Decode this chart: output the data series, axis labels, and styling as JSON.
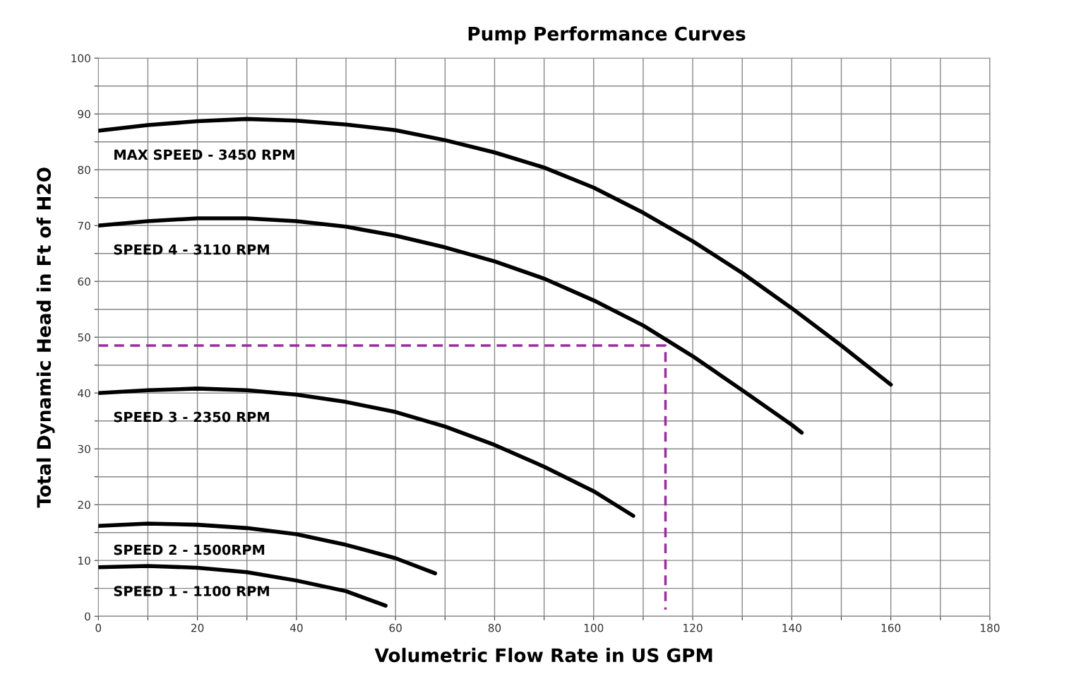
{
  "chart_data": {
    "type": "line",
    "title": "Pump Performance Curves",
    "xlabel": "Volumetric Flow Rate in US GPM",
    "ylabel": "Total Dynamic Head in Ft of H2O",
    "xlim": [
      0,
      180
    ],
    "ylim": [
      0,
      100
    ],
    "xticks": [
      0,
      {
        "value": 10,
        "label": null
      },
      20,
      {
        "value": 30,
        "label": null
      },
      40,
      {
        "value": 50,
        "label": null
      },
      60,
      {
        "value": 70,
        "label": null
      },
      80,
      {
        "value": 90,
        "label": null
      },
      100,
      {
        "value": 110,
        "label": null
      },
      120,
      {
        "value": 130,
        "label": null
      },
      140,
      {
        "value": 150,
        "label": null
      },
      160,
      {
        "value": 170,
        "label": null
      },
      180
    ],
    "yticks": [
      0,
      {
        "value": 5,
        "label": null
      },
      10,
      {
        "value": 15,
        "label": null
      },
      20,
      {
        "value": 25,
        "label": null
      },
      30,
      {
        "value": 35,
        "label": null
      },
      40,
      {
        "value": 45,
        "label": null
      },
      50,
      {
        "value": 55,
        "label": null
      },
      60,
      {
        "value": 65,
        "label": null
      },
      70,
      {
        "value": 75,
        "label": null
      },
      80,
      {
        "value": 85,
        "label": null
      },
      90,
      {
        "value": 95,
        "label": null
      },
      100
    ],
    "grid": true,
    "marker": "none",
    "line_style": "solid",
    "series": [
      {
        "name": "MAX SPEED - 3450 RPM",
        "color": "#000000",
        "x": [
          0,
          10,
          20,
          30,
          40,
          50,
          60,
          70,
          80,
          90,
          100,
          110,
          120,
          130,
          140,
          150,
          160
        ],
        "values": [
          87,
          88,
          88.7,
          89.1,
          88.8,
          88.1,
          87.1,
          85.3,
          83.1,
          80.4,
          76.8,
          72.3,
          67.2,
          61.5,
          55.2,
          48.5,
          41.5
        ]
      },
      {
        "name": "SPEED 4 - 3110 RPM",
        "color": "#000000",
        "x": [
          0,
          10,
          20,
          30,
          40,
          50,
          60,
          70,
          80,
          90,
          100,
          110,
          120,
          130,
          140,
          142
        ],
        "values": [
          70,
          70.8,
          71.3,
          71.3,
          70.8,
          69.8,
          68.2,
          66.1,
          63.6,
          60.5,
          56.6,
          52.1,
          46.6,
          40.5,
          34.3,
          32.9
        ]
      },
      {
        "name": "SPEED 3 - 2350 RPM",
        "color": "#000000",
        "x": [
          0,
          10,
          20,
          30,
          40,
          50,
          60,
          70,
          80,
          90,
          100,
          108
        ],
        "values": [
          40,
          40.5,
          40.8,
          40.5,
          39.7,
          38.4,
          36.6,
          34,
          30.7,
          26.8,
          22.4,
          18
        ]
      },
      {
        "name": "SPEED 2 - 1500RPM",
        "color": "#000000",
        "x": [
          0,
          10,
          20,
          30,
          40,
          50,
          60,
          68
        ],
        "values": [
          16.2,
          16.6,
          16.4,
          15.8,
          14.7,
          12.8,
          10.4,
          7.7
        ]
      },
      {
        "name": "SPEED 1 - 1100 RPM",
        "color": "#000000",
        "x": [
          0,
          10,
          20,
          30,
          40,
          50,
          58
        ],
        "values": [
          8.8,
          9,
          8.7,
          7.9,
          6.4,
          4.5,
          1.9
        ]
      },
      {
        "color": "#9b2b9f",
        "line_style": "dashed",
        "x": [
          0,
          114.5,
          114.5
        ],
        "values": [
          48.5,
          48.5,
          1.2
        ]
      }
    ]
  }
}
